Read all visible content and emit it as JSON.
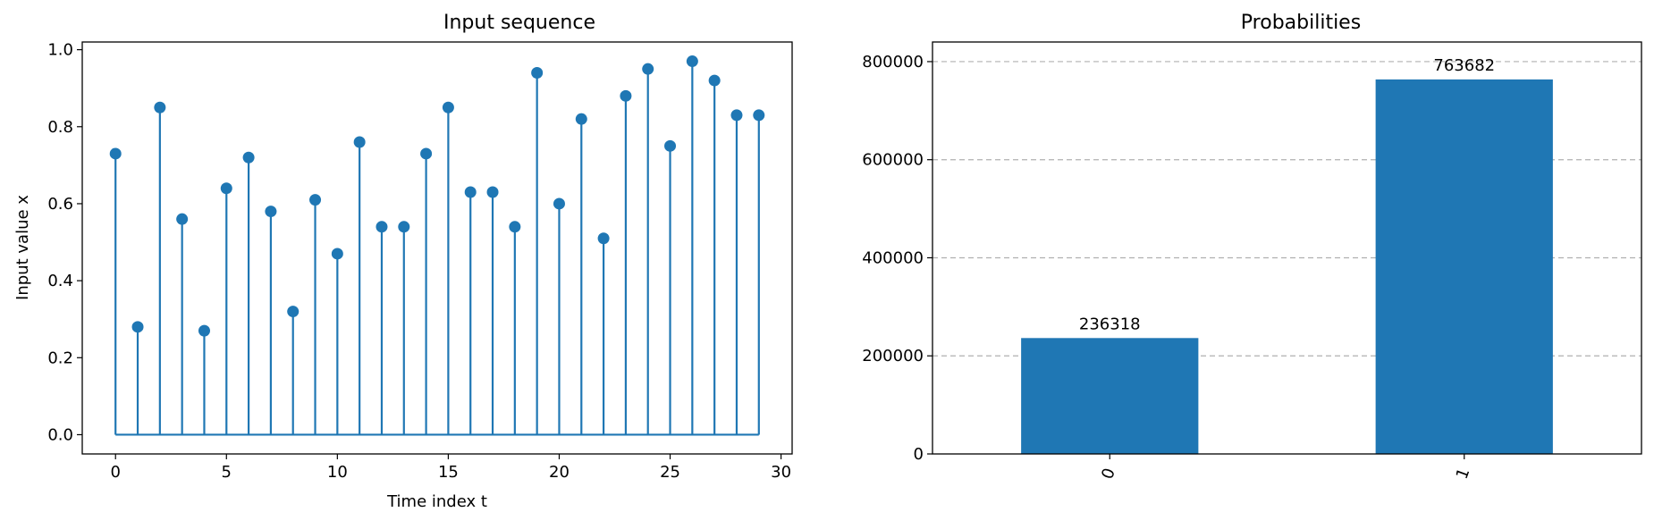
{
  "chart_data": [
    {
      "type": "stem",
      "title": "Input sequence",
      "xlabel": "Time index t",
      "ylabel": "Input value x",
      "xlim": [
        -1.5,
        30.5
      ],
      "ylim": [
        -0.05,
        1.02
      ],
      "xticks": [
        0,
        5,
        10,
        15,
        20,
        25,
        30
      ],
      "yticks": [
        0.0,
        0.2,
        0.4,
        0.6,
        0.8,
        1.0
      ],
      "x": [
        0,
        1,
        2,
        3,
        4,
        5,
        6,
        7,
        8,
        9,
        10,
        11,
        12,
        13,
        14,
        15,
        16,
        17,
        18,
        19,
        20,
        21,
        22,
        23,
        24,
        25,
        26,
        27,
        28,
        29
      ],
      "values": [
        0.73,
        0.28,
        0.85,
        0.56,
        0.27,
        0.64,
        0.72,
        0.58,
        0.32,
        0.61,
        0.47,
        0.76,
        0.54,
        0.54,
        0.73,
        0.85,
        0.63,
        0.63,
        0.54,
        0.94,
        0.6,
        0.82,
        0.51,
        0.88,
        0.95,
        0.75,
        0.97,
        0.92,
        0.83,
        0.83
      ],
      "color": "#1f77b4",
      "grid": false
    },
    {
      "type": "bar",
      "title": "Probabilities",
      "xlabel": "",
      "ylabel": "",
      "categories": [
        "0",
        "1"
      ],
      "values": [
        236318,
        763682
      ],
      "data_labels": [
        "236318",
        "763682"
      ],
      "ylim": [
        0,
        840000
      ],
      "yticks": [
        0,
        200000,
        400000,
        600000,
        800000
      ],
      "ytick_labels": [
        "0",
        "200000",
        "400000",
        "600000",
        "800000"
      ],
      "color": "#1f77b4",
      "grid": "y-dashed",
      "xtick_rotation": -70
    }
  ]
}
